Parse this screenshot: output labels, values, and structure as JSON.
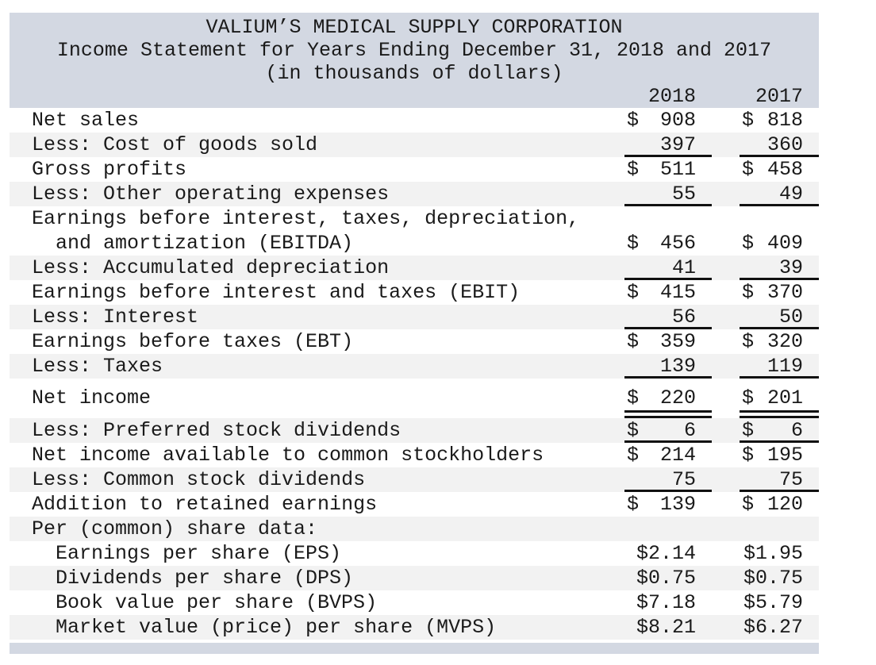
{
  "header": {
    "company": "VALIUM’S MEDICAL SUPPLY CORPORATION",
    "title": "Income Statement for Years Ending December 31, 2018 and 2017",
    "subtitle": "(in thousands of dollars)",
    "col_2018": "2018",
    "col_2017": "2017"
  },
  "colors": {
    "band": "#d3d8e2",
    "stripe": "#f2f2f2",
    "text": "#1a1a1a",
    "rule": "#111111"
  },
  "rows": [
    {
      "label": "Net sales",
      "stripe": false,
      "indent": false,
      "d18": "$",
      "v18": "908",
      "d17": "$",
      "v17": "818",
      "underline": "none"
    },
    {
      "label": "Less: Cost of goods sold",
      "stripe": true,
      "indent": false,
      "v18": "397",
      "v17": "360",
      "underline": "single"
    },
    {
      "label": "Gross profits",
      "stripe": false,
      "indent": false,
      "d18": "$",
      "v18": "511",
      "d17": "$",
      "v17": "458",
      "underline": "none"
    },
    {
      "label": "Less: Other operating expenses",
      "stripe": true,
      "indent": false,
      "v18": "55",
      "v17": "49",
      "underline": "single"
    },
    {
      "label": "Earnings before interest, taxes, depreciation,",
      "stripe": false,
      "indent": false,
      "underline": "none"
    },
    {
      "label": "and amortization (EBITDA)",
      "stripe": false,
      "indent": true,
      "d18": "$",
      "v18": "456",
      "d17": "$",
      "v17": "409",
      "underline": "none"
    },
    {
      "label": "Less: Accumulated depreciation",
      "stripe": true,
      "indent": false,
      "v18": "41",
      "v17": "39",
      "underline": "single"
    },
    {
      "label": "Earnings before interest and taxes (EBIT)",
      "stripe": false,
      "indent": false,
      "d18": "$",
      "v18": "415",
      "d17": "$",
      "v17": "370",
      "underline": "none"
    },
    {
      "label": "Less: Interest",
      "stripe": true,
      "indent": false,
      "v18": "56",
      "v17": "50",
      "underline": "single"
    },
    {
      "label": "Earnings before taxes (EBT)",
      "stripe": false,
      "indent": false,
      "d18": "$",
      "v18": "359",
      "d17": "$",
      "v17": "320",
      "underline": "none"
    },
    {
      "label": "Less: Taxes",
      "stripe": true,
      "indent": false,
      "v18": "139",
      "v17": "119",
      "underline": "single"
    },
    {
      "label": "Net income",
      "stripe": false,
      "indent": false,
      "d18": "$",
      "v18": "220",
      "d17": "$",
      "v17": "201",
      "underline": "double",
      "gap_before": true
    },
    {
      "label": "Less: Preferred stock dividends",
      "stripe": true,
      "indent": false,
      "d18": "$",
      "v18": "6",
      "d17": "$",
      "v17": "6",
      "underline": "single"
    },
    {
      "label": "Net income available to common stockholders",
      "stripe": false,
      "indent": false,
      "d18": "$",
      "v18": "214",
      "d17": "$",
      "v17": "195",
      "underline": "none"
    },
    {
      "label": "Less: Common stock dividends",
      "stripe": true,
      "indent": false,
      "v18": "75",
      "v17": "75",
      "underline": "single"
    },
    {
      "label": "Addition to retained earnings",
      "stripe": false,
      "indent": false,
      "d18": "$",
      "v18": "139",
      "d17": "$",
      "v17": "120",
      "underline": "none"
    },
    {
      "label": "Per (common) share data:",
      "stripe": true,
      "indent": false,
      "underline": "none"
    },
    {
      "label": "Earnings per share (EPS)",
      "stripe": false,
      "indent": true,
      "v18": "$2.14",
      "v17": "$1.95",
      "underline": "none"
    },
    {
      "label": "Dividends per share (DPS)",
      "stripe": true,
      "indent": true,
      "v18": "$0.75",
      "v17": "$0.75",
      "underline": "none"
    },
    {
      "label": "Book value per share (BVPS)",
      "stripe": false,
      "indent": true,
      "v18": "$7.18",
      "v17": "$5.79",
      "underline": "none"
    },
    {
      "label": "Market value (price) per share (MVPS)",
      "stripe": true,
      "indent": true,
      "v18": "$8.21",
      "v17": "$6.27",
      "underline": "none"
    }
  ]
}
